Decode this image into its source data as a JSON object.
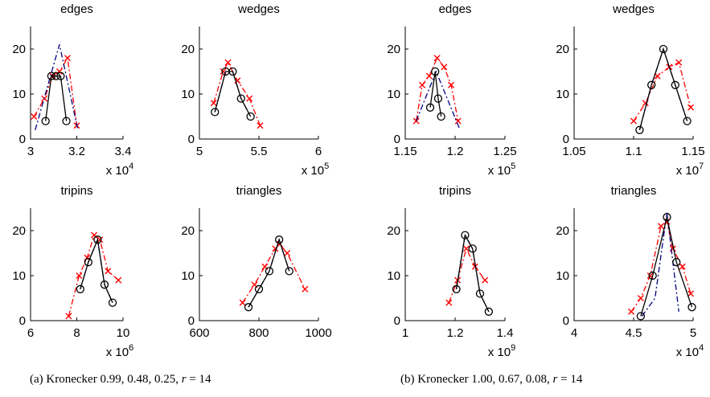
{
  "captions": [
    {
      "prefix": "(a) Kronecker 0.99, 0.48, 0.25, ",
      "rvar": "r",
      "rest": " = 14"
    },
    {
      "prefix": "(b) Kronecker 1.00, 0.67, 0.08, ",
      "rvar": "r",
      "rest": " = 14"
    }
  ],
  "colors": {
    "observed": "#000000",
    "fit": "#000080",
    "model": "#ff0000"
  },
  "chart_data": [
    {
      "type": "line",
      "title": "edges",
      "xlabel": "",
      "ylabel": "",
      "xlim": [
        30000,
        34000
      ],
      "ylim": [
        0,
        25
      ],
      "xticks": [
        30000,
        32000,
        34000
      ],
      "xticklabels": [
        "3",
        "3.2",
        "3.4"
      ],
      "yticks": [
        0,
        10,
        20
      ],
      "yticklabels": [
        "0",
        "10",
        "20"
      ],
      "exp_base": "x 10",
      "exp_power": "4",
      "series": [
        {
          "x": [
            30650,
            30900,
            31100,
            31300,
            31550
          ],
          "y": [
            4,
            14,
            14,
            14,
            4
          ]
        },
        {
          "x": [
            30200,
            31250,
            32050
          ],
          "y": [
            2,
            21,
            2
          ]
        },
        {
          "x": [
            30150,
            30600,
            30950,
            31250,
            31600,
            32000
          ],
          "y": [
            5,
            9,
            14,
            15,
            18,
            3
          ]
        }
      ]
    },
    {
      "type": "line",
      "title": "wedges",
      "xlabel": "",
      "ylabel": "",
      "xlim": [
        500000,
        600000
      ],
      "ylim": [
        0,
        25
      ],
      "xticks": [
        500000,
        550000,
        600000
      ],
      "xticklabels": [
        "5",
        "5.5",
        "6"
      ],
      "yticks": [
        0,
        10,
        20
      ],
      "yticklabels": [
        "0",
        "10",
        "20"
      ],
      "exp_base": "x 10",
      "exp_power": "5",
      "series": [
        {
          "x": [
            513000,
            522000,
            528000,
            535000,
            543000
          ],
          "y": [
            6,
            15,
            15,
            9,
            5
          ]
        },
        {
          "x": [
            513000,
            522000,
            528000,
            535000,
            543000
          ],
          "y": [
            6,
            15,
            15,
            9,
            5
          ]
        },
        {
          "x": [
            512000,
            520000,
            524000,
            532000,
            542000,
            551000
          ],
          "y": [
            8,
            15,
            17,
            13,
            9,
            3
          ]
        }
      ]
    },
    {
      "type": "line",
      "title": "tripins",
      "xlabel": "",
      "ylabel": "",
      "xlim": [
        6000000,
        10000000
      ],
      "ylim": [
        0,
        25
      ],
      "xticks": [
        6000000,
        8000000,
        10000000
      ],
      "xticklabels": [
        "6",
        "8",
        "10"
      ],
      "yticks": [
        0,
        10,
        20
      ],
      "yticklabels": [
        "0",
        "10",
        "20"
      ],
      "exp_base": "x 10",
      "exp_power": "6",
      "series": [
        {
          "x": [
            8150000,
            8500000,
            8900000,
            9200000,
            9550000
          ],
          "y": [
            7,
            13,
            18,
            8,
            4
          ]
        },
        {
          "x": [
            8150000,
            8500000,
            8900000,
            9200000,
            9550000
          ],
          "y": [
            7,
            13,
            18,
            8,
            4
          ]
        },
        {
          "x": [
            7650000,
            8100000,
            8450000,
            8750000,
            9000000,
            9350000,
            9800000
          ],
          "y": [
            1,
            10,
            14,
            19,
            18,
            11,
            9
          ]
        }
      ]
    },
    {
      "type": "line",
      "title": "triangles",
      "xlabel": "",
      "ylabel": "",
      "xlim": [
        600,
        1000
      ],
      "ylim": [
        0,
        25
      ],
      "xticks": [
        600,
        800,
        1000
      ],
      "xticklabels": [
        "600",
        "800",
        "1000"
      ],
      "yticks": [
        0,
        10,
        20
      ],
      "yticklabels": [
        "0",
        "10",
        "20"
      ],
      "exp_base": "",
      "exp_power": "",
      "series": [
        {
          "x": [
            765,
            800,
            835,
            868,
            902
          ],
          "y": [
            3,
            7,
            11,
            18,
            11
          ]
        },
        {
          "x": [
            765,
            800,
            835,
            868,
            902
          ],
          "y": [
            3,
            7,
            11,
            18,
            11
          ]
        },
        {
          "x": [
            745,
            785,
            820,
            855,
            870,
            895,
            955
          ],
          "y": [
            4,
            8,
            12,
            16,
            17,
            15,
            7
          ]
        }
      ]
    },
    {
      "type": "line",
      "title": "edges",
      "xlabel": "",
      "ylabel": "",
      "xlim": [
        115000,
        125000
      ],
      "ylim": [
        0,
        25
      ],
      "xticks": [
        115000,
        120000,
        125000
      ],
      "xticklabels": [
        "1.15",
        "1.2",
        "1.25"
      ],
      "yticks": [
        0,
        10,
        20
      ],
      "yticklabels": [
        "0",
        "10",
        "20"
      ],
      "exp_base": "x 10",
      "exp_power": "5",
      "series": [
        {
          "x": [
            117500,
            118000,
            118300,
            118600
          ],
          "y": [
            7,
            15,
            9,
            5
          ]
        },
        {
          "x": [
            116100,
            118100,
            120500
          ],
          "y": [
            4,
            15,
            2
          ]
        },
        {
          "x": [
            116100,
            116700,
            117400,
            118200,
            118900,
            119600,
            120300
          ],
          "y": [
            4,
            12,
            14,
            18,
            16,
            12,
            4
          ]
        }
      ]
    },
    {
      "type": "line",
      "title": "wedges",
      "xlabel": "",
      "ylabel": "",
      "xlim": [
        10500000,
        11500000
      ],
      "ylim": [
        0,
        25
      ],
      "xticks": [
        10500000,
        11000000,
        11500000
      ],
      "xticklabels": [
        "1.05",
        "1.1",
        "1.15"
      ],
      "yticks": [
        0,
        10,
        20
      ],
      "yticklabels": [
        "0",
        "10",
        "20"
      ],
      "exp_base": "x 10",
      "exp_power": "7",
      "series": [
        {
          "x": [
            11050000,
            11150000,
            11250000,
            11350000,
            11450000
          ],
          "y": [
            2,
            12,
            20,
            12,
            4
          ]
        },
        {
          "x": [
            11050000,
            11150000,
            11250000,
            11350000,
            11450000
          ],
          "y": [
            2,
            12,
            20,
            12,
            4
          ]
        },
        {
          "x": [
            11000000,
            11100000,
            11200000,
            11300000,
            11380000,
            11480000
          ],
          "y": [
            4,
            8,
            14,
            16,
            17,
            7
          ]
        }
      ]
    },
    {
      "type": "line",
      "title": "tripins",
      "xlabel": "",
      "ylabel": "",
      "xlim": [
        1000000000,
        1400000000
      ],
      "ylim": [
        0,
        25
      ],
      "xticks": [
        1000000000,
        1200000000,
        1400000000
      ],
      "xticklabels": [
        "1",
        "1.2",
        "1.4"
      ],
      "yticks": [
        0,
        10,
        20
      ],
      "yticklabels": [
        "0",
        "10",
        "20"
      ],
      "exp_base": "x 10",
      "exp_power": "9",
      "series": [
        {
          "x": [
            1205000000,
            1240000000,
            1270000000,
            1300000000,
            1335000000
          ],
          "y": [
            7,
            19,
            16,
            6,
            2
          ]
        },
        {
          "x": [
            1205000000,
            1240000000,
            1270000000,
            1300000000,
            1335000000
          ],
          "y": [
            7,
            19,
            16,
            6,
            2
          ]
        },
        {
          "x": [
            1175000000,
            1210000000,
            1245000000,
            1280000000,
            1320000000
          ],
          "y": [
            4,
            9,
            16,
            12,
            9
          ]
        }
      ]
    },
    {
      "type": "line",
      "title": "triangles",
      "xlabel": "",
      "ylabel": "",
      "xlim": [
        40000,
        50000
      ],
      "ylim": [
        0,
        25
      ],
      "xticks": [
        40000,
        45000,
        50000
      ],
      "xticklabels": [
        "4",
        "4.5",
        "5"
      ],
      "yticks": [
        0,
        10,
        20
      ],
      "yticklabels": [
        "0",
        "10",
        "20"
      ],
      "exp_base": "x 10",
      "exp_power": "4",
      "series": [
        {
          "x": [
            45600,
            46600,
            47800,
            48600,
            49900
          ],
          "y": [
            1,
            10,
            23,
            13,
            3
          ]
        },
        {
          "x": [
            45700,
            46800,
            47800,
            48800
          ],
          "y": [
            1,
            5,
            24,
            2
          ]
        },
        {
          "x": [
            44800,
            45600,
            46400,
            47300,
            47800,
            48300,
            49100,
            49800
          ],
          "y": [
            2,
            5,
            10,
            21,
            22,
            16,
            12,
            6
          ]
        }
      ]
    }
  ]
}
